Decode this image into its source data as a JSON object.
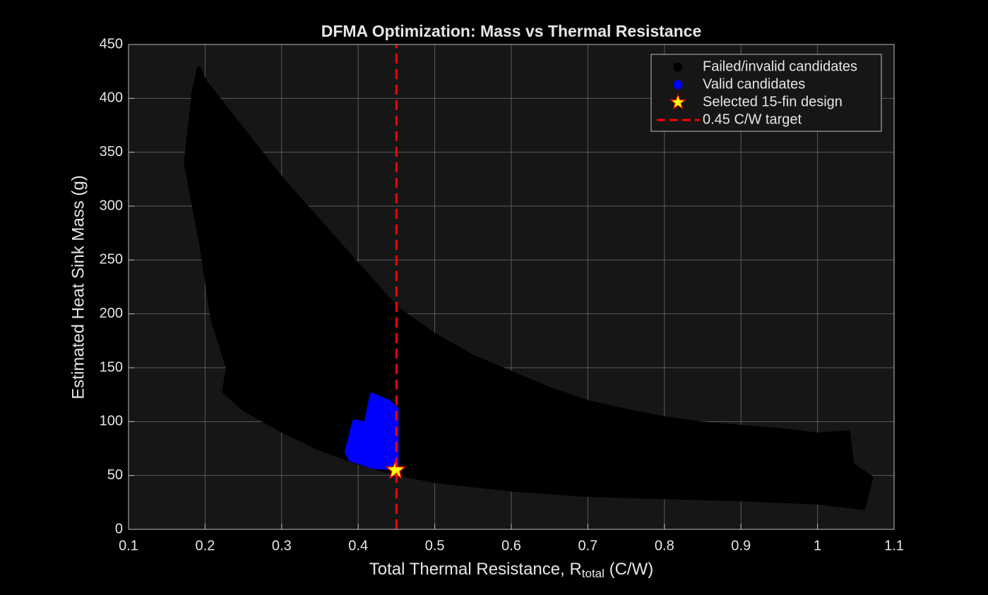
{
  "chart_data": {
    "type": "scatter",
    "title": "DFMA Optimization: Mass vs Thermal Resistance",
    "xlabel": {
      "main": "Total Thermal Resistance, R",
      "sub": "total",
      "tail": " (C/W)"
    },
    "ylabel": "Estimated Heat Sink Mass (g)",
    "xlim": [
      0.1,
      1.1
    ],
    "xticks": [
      0.1,
      0.2,
      0.3,
      0.4,
      0.5,
      0.6,
      0.7,
      0.8,
      0.9,
      1,
      1.1
    ],
    "ylim": [
      0,
      450
    ],
    "yticks": [
      0,
      50,
      100,
      150,
      200,
      250,
      300,
      350,
      400,
      450
    ],
    "grid": true,
    "legend": "upper right",
    "series": [
      {
        "name": "Failed/invalid candidates",
        "color": "#000000",
        "marker": "region",
        "x": [
          0.185,
          0.192,
          0.2,
          0.25,
          0.3,
          0.35,
          0.4,
          0.45,
          0.5,
          0.55,
          0.6,
          0.65,
          0.7,
          0.75,
          0.8,
          0.85,
          0.9,
          0.95,
          1.0,
          1.04,
          1.045,
          1.07,
          1.06,
          1.0,
          0.9,
          0.8,
          0.7,
          0.6,
          0.5,
          0.45,
          0.4,
          0.35,
          0.3,
          0.25,
          0.225,
          0.23,
          0.21,
          0.195,
          0.175
        ],
        "y": [
          405,
          428,
          415,
          370,
          325,
          285,
          245,
          205,
          180,
          160,
          145,
          130,
          118,
          110,
          103,
          98,
          95,
          92,
          88,
          90,
          60,
          48,
          20,
          25,
          28,
          30,
          32,
          37,
          45,
          52,
          62,
          75,
          92,
          112,
          128,
          150,
          195,
          265,
          340
        ]
      },
      {
        "name": "Valid candidates",
        "color": "#0000ff",
        "marker": "region",
        "x": [
          0.385,
          0.395,
          0.41,
          0.418,
          0.44,
          0.45,
          0.45,
          0.42,
          0.39
        ],
        "y": [
          72,
          100,
          98,
          125,
          118,
          112,
          57,
          58,
          65
        ]
      },
      {
        "name": "Selected 15-fin design",
        "color": "#ffff00",
        "marker": "star",
        "x": [
          0.449
        ],
        "y": [
          55
        ]
      }
    ],
    "reference": {
      "name": "0.45 C/W target",
      "color": "#ff0000",
      "x": 0.45
    }
  }
}
